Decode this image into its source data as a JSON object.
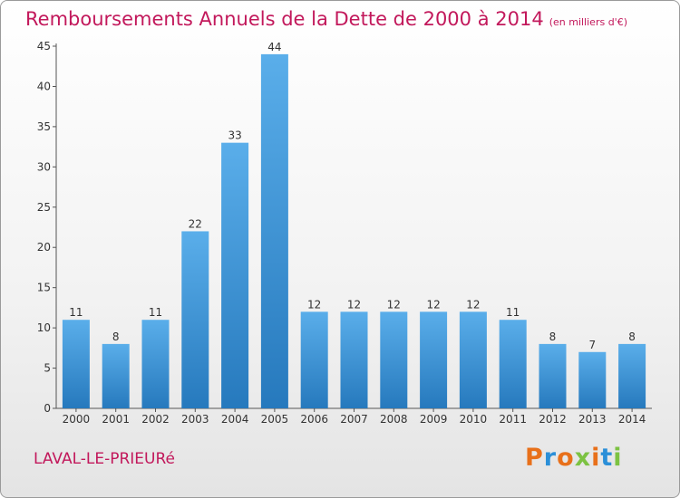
{
  "page": {
    "title": "Remboursements Annuels de la Dette de 2000 à 2014",
    "unit_note": "(en milliers d'€)",
    "commune": "LAVAL-LE-PRIEURé",
    "logo_text": "Proxiti"
  },
  "colors": {
    "title": "#c2185b",
    "bar_top": "#5aaeea",
    "bar_bottom": "#2679bd",
    "logo_letters": [
      "#e8701a",
      "#2b8fd8",
      "#e8701a",
      "#7cc242",
      "#e8701a",
      "#2b8fd8",
      "#7cc242"
    ]
  },
  "chart_data": {
    "type": "bar",
    "title": "Remboursements Annuels de la Dette de 2000 à 2014",
    "xlabel": "",
    "ylabel": "",
    "categories": [
      "2000",
      "2001",
      "2002",
      "2003",
      "2004",
      "2005",
      "2006",
      "2007",
      "2008",
      "2009",
      "2010",
      "2011",
      "2012",
      "2013",
      "2014"
    ],
    "values": [
      11,
      8,
      11,
      22,
      33,
      44,
      12,
      12,
      12,
      12,
      12,
      11,
      8,
      7,
      8
    ],
    "ylim": [
      0,
      45
    ],
    "yticks": [
      0,
      5,
      10,
      15,
      20,
      25,
      30,
      35,
      40,
      45
    ],
    "grid": false,
    "legend": "none"
  }
}
